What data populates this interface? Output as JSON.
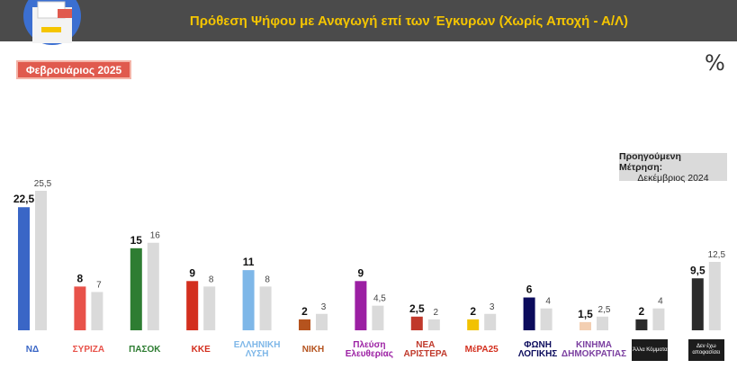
{
  "header": {
    "title": "Πρόθεση Ψήφου με Αναγωγή επί των Έγκυρων (Χωρίς Αποχή - Α/Λ)"
  },
  "month_badge": "Φεβρουάριος 2025",
  "percent_symbol": "%",
  "previous_box": {
    "line1": "Προηγούμενη Μέτρηση:",
    "line2": "Δεκέμβριος 2024"
  },
  "colors": {
    "header_bg": "#4b4b4b",
    "header_text": "#f5c500",
    "badge_bg": "#e05a4e",
    "previous_bar": "#dadada"
  },
  "parties": [
    {
      "logo": "ΝΔ",
      "color": "#3a66c6"
    },
    {
      "logo": "ΣΥΡΙΖΑ",
      "color": "#e8524a"
    },
    {
      "logo": "ΠΑΣΟΚ",
      "color": "#2e7d32"
    },
    {
      "logo": "ΚΚΕ",
      "color": "#d32f1e"
    },
    {
      "logo": "ΕΛΛΗΝΙΚΗ ΛΥΣΗ",
      "color": "#7eb7e8"
    },
    {
      "logo": "ΝΙΚΗ",
      "color": "#b5531e"
    },
    {
      "logo": "Πλεύση Ελευθερίας",
      "color": "#9b1fa3"
    },
    {
      "logo": "ΝΕΑ ΑΡΙΣΤΕΡΑ",
      "color": "#c0392b"
    },
    {
      "logo": "ΜέΡΑ25",
      "color": "#f2c200"
    },
    {
      "logo": "ΦΩΝΗ ΛΟΓΙΚΗΣ",
      "color": "#0b0b5c"
    },
    {
      "logo": "ΚΙΝΗΜΑ ΔΗΜΟΚΡΑΤΙΑΣ",
      "color": "#f3cfb2"
    },
    {
      "logo": "Άλλα Κόμματα",
      "color": "#2b2b2b"
    },
    {
      "logo": "Δεν έχω αποφασίσει",
      "color": "#2b2b2b"
    }
  ],
  "chart_data": {
    "type": "bar",
    "categories": [
      "ΝΔ",
      "ΣΥΡΙΖΑ",
      "ΠΑΣΟΚ",
      "ΚΚΕ",
      "ΕΛΛΗΝΙΚΗ ΛΥΣΗ",
      "ΝΙΚΗ",
      "Πλεύση Ελευθερίας",
      "ΝΕΑ ΑΡΙΣΤΕΡΑ",
      "ΜέΡΑ25",
      "ΦΩΝΗ ΛΟΓΙΚΗΣ",
      "ΚΙΝΗΜΑ ΔΗΜΟΚΡΑΤΙΑΣ",
      "Άλλα Κόμματα",
      "Δεν έχω αποφασίσει"
    ],
    "series": [
      {
        "name": "Φεβρουάριος 2025",
        "values": [
          22.5,
          8,
          15,
          9,
          11,
          2,
          9,
          2.5,
          2,
          6,
          1.5,
          2,
          9.5
        ]
      },
      {
        "name": "Δεκέμβριος 2024",
        "values": [
          25.5,
          7,
          16,
          8,
          8,
          3,
          4.5,
          2,
          3,
          4,
          2.5,
          4,
          12.5
        ]
      }
    ],
    "labels_current": [
      "22,5",
      "8",
      "15",
      "9",
      "11",
      "2",
      "9",
      "2,5",
      "2",
      "6",
      "1,5",
      "2",
      "9,5"
    ],
    "labels_previous": [
      "25,5",
      "7",
      "16",
      "8",
      "8",
      "3",
      "4,5",
      "2",
      "3",
      "4",
      "2,5",
      "4",
      "12,5"
    ],
    "ylim": [
      0,
      25.5
    ],
    "grid": false,
    "legend": "top-right"
  }
}
